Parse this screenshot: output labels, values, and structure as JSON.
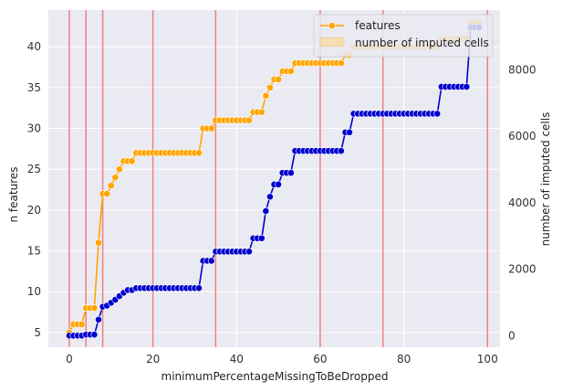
{
  "chart_data": {
    "type": "line",
    "xlabel": "minimumPercentageMissingToBeDropped",
    "ylabel_left": "n features",
    "ylabel_right": "number of imputed cells",
    "xlim": [
      -5,
      103
    ],
    "ylim_left": [
      3.2,
      44.5
    ],
    "ylim_right": [
      -350,
      9800
    ],
    "x_ticks": [
      0,
      20,
      40,
      60,
      80,
      100
    ],
    "y_left_ticks": [
      5,
      10,
      15,
      20,
      25,
      30,
      35,
      40
    ],
    "y_right_ticks": [
      0,
      2000,
      4000,
      6000,
      8000
    ],
    "grid": true,
    "legend": "top-right",
    "vertical_lines": [
      0,
      4,
      8,
      20,
      35,
      60,
      75,
      100
    ],
    "colors": {
      "features": "#FFA500",
      "imputed": "#0000CD",
      "vline": "#F08080",
      "background": "#EAEAF2"
    },
    "series": [
      {
        "name": "features",
        "axis": "left",
        "points": [
          [
            0,
            5
          ],
          [
            1,
            6
          ],
          [
            2,
            6
          ],
          [
            3,
            6
          ],
          [
            4,
            8
          ],
          [
            5,
            8
          ],
          [
            6,
            8
          ],
          [
            7,
            16
          ],
          [
            8,
            22
          ],
          [
            9,
            22
          ],
          [
            10,
            23
          ],
          [
            11,
            24
          ],
          [
            12,
            25
          ],
          [
            13,
            26
          ],
          [
            14,
            26
          ],
          [
            15,
            26
          ],
          [
            16,
            27
          ],
          [
            17,
            27
          ],
          [
            18,
            27
          ],
          [
            19,
            27
          ],
          [
            20,
            27
          ],
          [
            21,
            27
          ],
          [
            22,
            27
          ],
          [
            23,
            27
          ],
          [
            24,
            27
          ],
          [
            25,
            27
          ],
          [
            26,
            27
          ],
          [
            27,
            27
          ],
          [
            28,
            27
          ],
          [
            29,
            27
          ],
          [
            30,
            27
          ],
          [
            31,
            27
          ],
          [
            32,
            30
          ],
          [
            33,
            30
          ],
          [
            34,
            30
          ],
          [
            35,
            31
          ],
          [
            36,
            31
          ],
          [
            37,
            31
          ],
          [
            38,
            31
          ],
          [
            39,
            31
          ],
          [
            40,
            31
          ],
          [
            41,
            31
          ],
          [
            42,
            31
          ],
          [
            43,
            31
          ],
          [
            44,
            32
          ],
          [
            45,
            32
          ],
          [
            46,
            32
          ],
          [
            47,
            34
          ],
          [
            48,
            35
          ],
          [
            49,
            36
          ],
          [
            50,
            36
          ],
          [
            51,
            37
          ],
          [
            52,
            37
          ],
          [
            53,
            37
          ],
          [
            54,
            38
          ],
          [
            55,
            38
          ],
          [
            56,
            38
          ],
          [
            57,
            38
          ],
          [
            58,
            38
          ],
          [
            59,
            38
          ],
          [
            60,
            38
          ],
          [
            61,
            38
          ],
          [
            62,
            38
          ],
          [
            63,
            38
          ],
          [
            64,
            38
          ],
          [
            65,
            38
          ],
          [
            66,
            39
          ],
          [
            67,
            39
          ],
          [
            68,
            40
          ],
          [
            69,
            40
          ],
          [
            70,
            40
          ],
          [
            71,
            40
          ],
          [
            72,
            40
          ],
          [
            73,
            40
          ],
          [
            74,
            40
          ],
          [
            75,
            40
          ],
          [
            76,
            40
          ],
          [
            77,
            40
          ],
          [
            78,
            40
          ],
          [
            79,
            40
          ],
          [
            80,
            40
          ],
          [
            81,
            40
          ],
          [
            82,
            40
          ],
          [
            83,
            40
          ],
          [
            84,
            40
          ],
          [
            85,
            40
          ],
          [
            86,
            40
          ],
          [
            87,
            40
          ],
          [
            88,
            40
          ],
          [
            89,
            41
          ],
          [
            90,
            41
          ],
          [
            91,
            41
          ],
          [
            92,
            41
          ],
          [
            93,
            41
          ],
          [
            94,
            41
          ],
          [
            95,
            41
          ],
          [
            96,
            43
          ],
          [
            97,
            43
          ],
          [
            98,
            43
          ]
        ]
      },
      {
        "name": "number of imputed cells",
        "axis": "right",
        "points": [
          [
            0,
            0
          ],
          [
            1,
            0
          ],
          [
            2,
            0
          ],
          [
            3,
            0
          ],
          [
            4,
            30
          ],
          [
            5,
            30
          ],
          [
            6,
            30
          ],
          [
            7,
            480
          ],
          [
            8,
            870
          ],
          [
            9,
            900
          ],
          [
            10,
            990
          ],
          [
            11,
            1080
          ],
          [
            12,
            1190
          ],
          [
            13,
            1290
          ],
          [
            14,
            1370
          ],
          [
            15,
            1370
          ],
          [
            16,
            1430
          ],
          [
            17,
            1430
          ],
          [
            18,
            1430
          ],
          [
            19,
            1430
          ],
          [
            20,
            1430
          ],
          [
            21,
            1430
          ],
          [
            22,
            1430
          ],
          [
            23,
            1430
          ],
          [
            24,
            1430
          ],
          [
            25,
            1430
          ],
          [
            26,
            1430
          ],
          [
            27,
            1430
          ],
          [
            28,
            1430
          ],
          [
            29,
            1430
          ],
          [
            30,
            1430
          ],
          [
            31,
            1430
          ],
          [
            32,
            2250
          ],
          [
            33,
            2250
          ],
          [
            34,
            2250
          ],
          [
            35,
            2530
          ],
          [
            36,
            2530
          ],
          [
            37,
            2530
          ],
          [
            38,
            2530
          ],
          [
            39,
            2530
          ],
          [
            40,
            2530
          ],
          [
            41,
            2530
          ],
          [
            42,
            2530
          ],
          [
            43,
            2530
          ],
          [
            44,
            2930
          ],
          [
            45,
            2930
          ],
          [
            46,
            2930
          ],
          [
            47,
            3750
          ],
          [
            48,
            4180
          ],
          [
            49,
            4550
          ],
          [
            50,
            4550
          ],
          [
            51,
            4900
          ],
          [
            52,
            4900
          ],
          [
            53,
            4900
          ],
          [
            54,
            5560
          ],
          [
            55,
            5560
          ],
          [
            56,
            5560
          ],
          [
            57,
            5560
          ],
          [
            58,
            5560
          ],
          [
            59,
            5560
          ],
          [
            60,
            5560
          ],
          [
            61,
            5560
          ],
          [
            62,
            5560
          ],
          [
            63,
            5560
          ],
          [
            64,
            5560
          ],
          [
            65,
            5560
          ],
          [
            66,
            6120
          ],
          [
            67,
            6120
          ],
          [
            68,
            6680
          ],
          [
            69,
            6680
          ],
          [
            70,
            6680
          ],
          [
            71,
            6680
          ],
          [
            72,
            6680
          ],
          [
            73,
            6680
          ],
          [
            74,
            6680
          ],
          [
            75,
            6680
          ],
          [
            76,
            6680
          ],
          [
            77,
            6680
          ],
          [
            78,
            6680
          ],
          [
            79,
            6680
          ],
          [
            80,
            6680
          ],
          [
            81,
            6680
          ],
          [
            82,
            6680
          ],
          [
            83,
            6680
          ],
          [
            84,
            6680
          ],
          [
            85,
            6680
          ],
          [
            86,
            6680
          ],
          [
            87,
            6680
          ],
          [
            88,
            6680
          ],
          [
            89,
            7490
          ],
          [
            90,
            7490
          ],
          [
            91,
            7490
          ],
          [
            92,
            7490
          ],
          [
            93,
            7490
          ],
          [
            94,
            7490
          ],
          [
            95,
            7490
          ],
          [
            96,
            9280
          ],
          [
            97,
            9280
          ],
          [
            98,
            9280
          ]
        ]
      }
    ]
  }
}
